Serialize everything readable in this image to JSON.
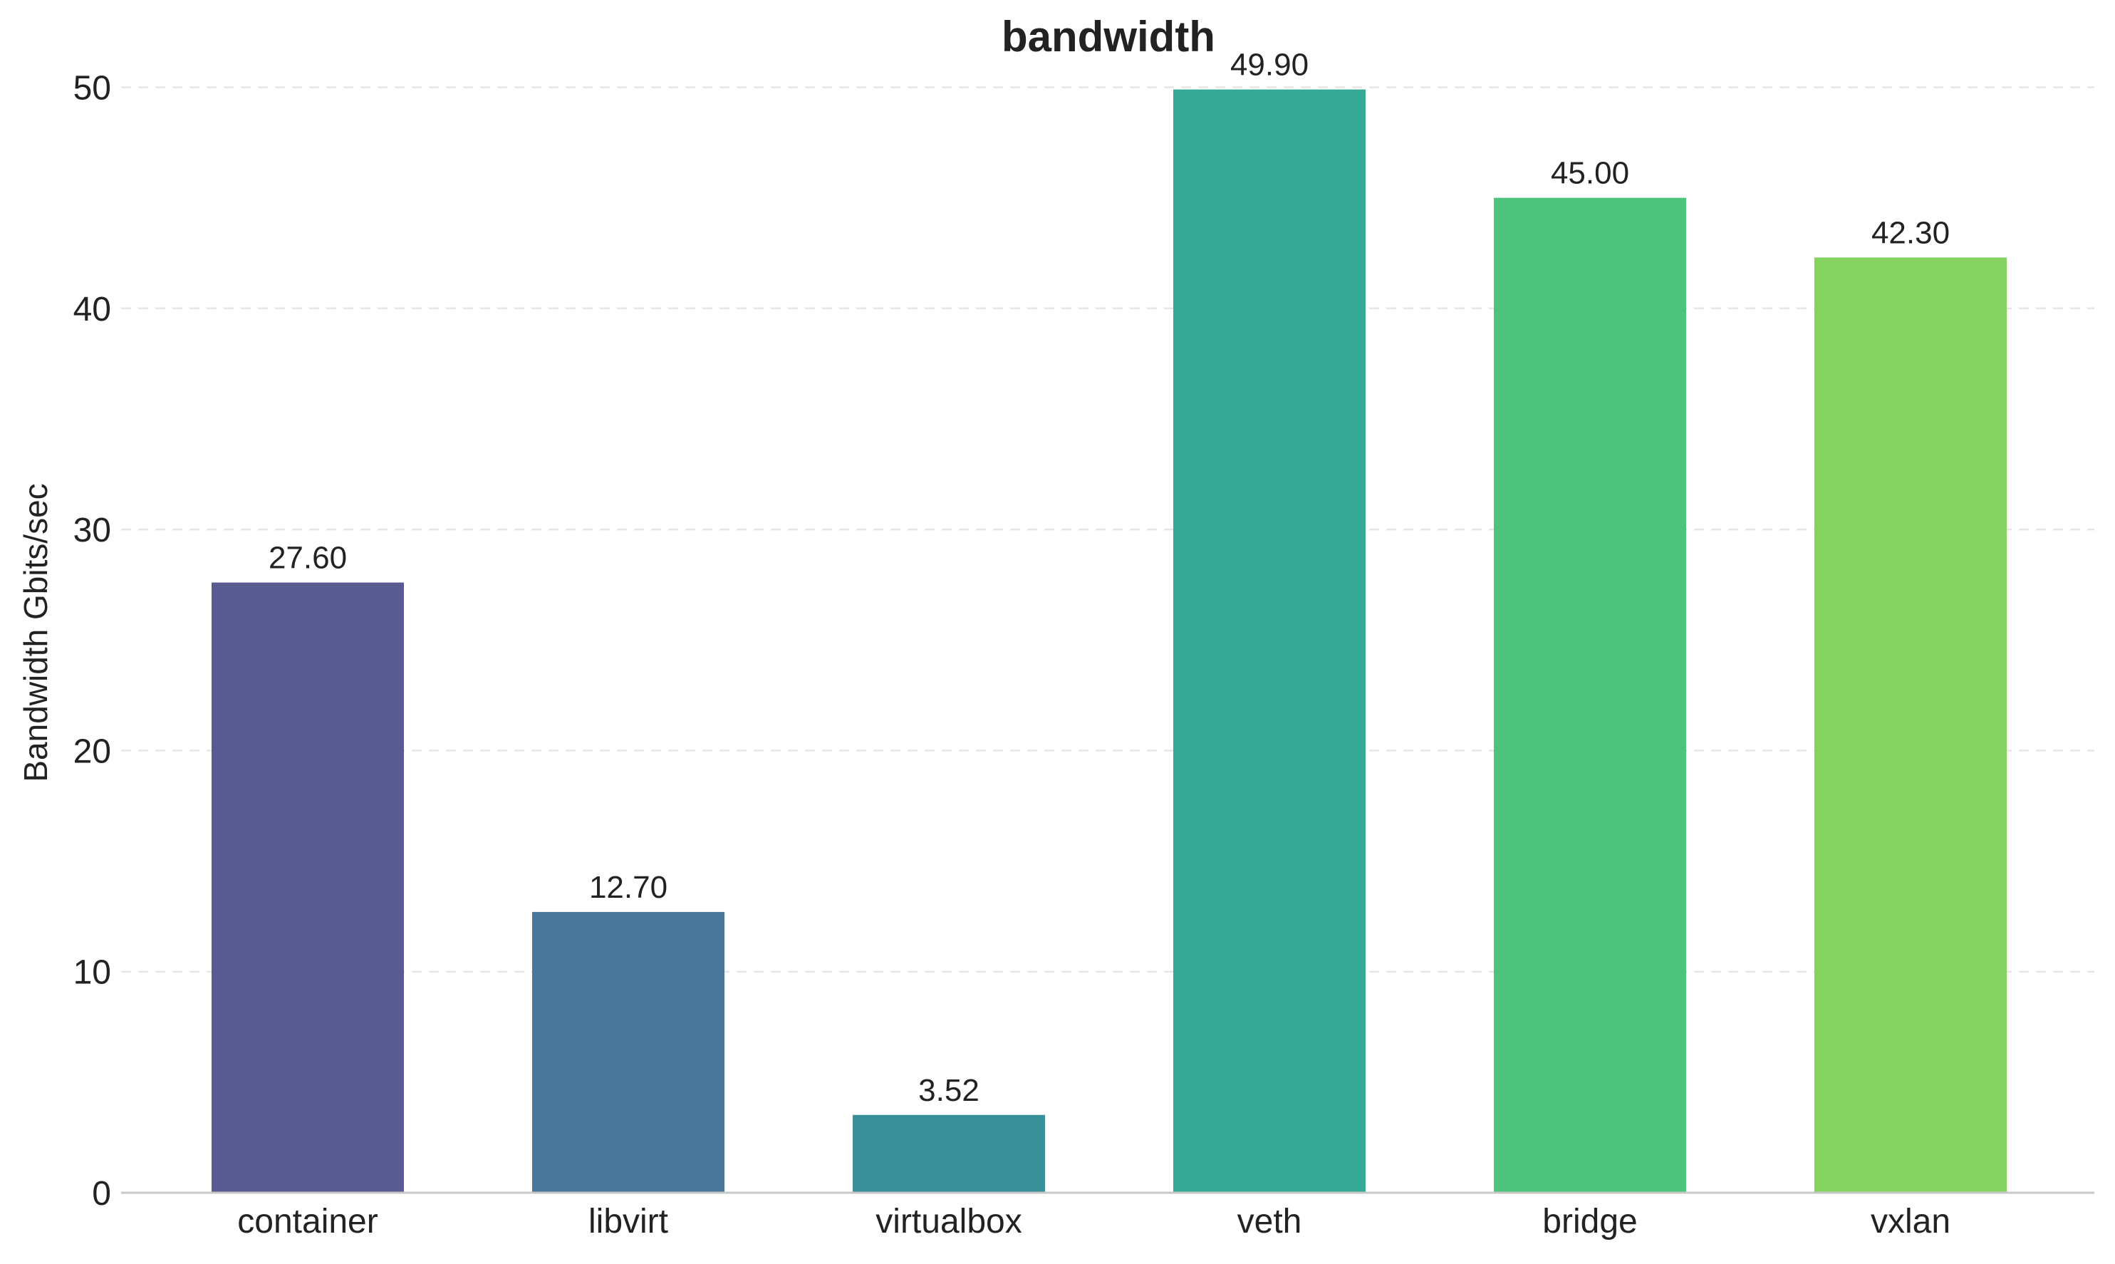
{
  "chart_data": {
    "type": "bar",
    "title": "bandwidth",
    "xlabel": "",
    "ylabel": "Bandwidth Gbits/sec",
    "ylim": [
      0,
      52.4
    ],
    "yticks": [
      0,
      10,
      20,
      30,
      40,
      50
    ],
    "grid": "horizontal dashed",
    "legend": "none",
    "categories": [
      "container",
      "libvirt",
      "virtualbox",
      "veth",
      "bridge",
      "vxlan"
    ],
    "values": [
      27.6,
      12.7,
      3.52,
      49.9,
      45.0,
      42.3
    ],
    "value_labels": [
      "27.60",
      "12.70",
      "3.52",
      "49.90",
      "45.00",
      "42.30"
    ],
    "colors": [
      "#5b5b94",
      "#4a7799",
      "#3a9098",
      "#36a994",
      "#4ec37c",
      "#84d25f"
    ]
  }
}
